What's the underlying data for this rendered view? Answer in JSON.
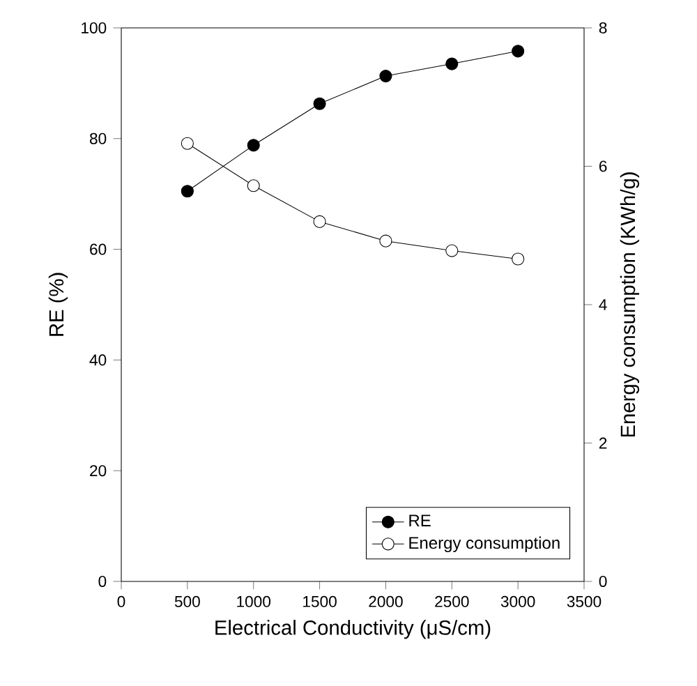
{
  "chart_data": {
    "type": "line",
    "xlabel": "Electrical Conductivity (μS/cm)",
    "ylabel": "RE (%)",
    "y2label": "Energy consumption (KWh/g)",
    "x": [
      500,
      1000,
      1500,
      2000,
      2500,
      3000
    ],
    "series": [
      {
        "name": "RE",
        "color": "#000000",
        "values": [
          70.5,
          78.8,
          86.3,
          91.3,
          93.5,
          95.8
        ]
      },
      {
        "name": "Energy consumption",
        "color": "#ffffff",
        "axis": "y2",
        "values": [
          6.33,
          5.72,
          5.2,
          4.92,
          4.78,
          4.66
        ]
      }
    ],
    "xlim": [
      0,
      3500
    ],
    "xticks": [
      0,
      500,
      1000,
      1500,
      2000,
      2500,
      3000,
      3500
    ],
    "ylim": [
      0,
      100
    ],
    "yticks": [
      0,
      20,
      40,
      60,
      80,
      100
    ],
    "y2lim": [
      0,
      8
    ],
    "y2ticks": [
      0,
      2,
      4,
      6,
      8
    ],
    "marker": "circle",
    "line_style": "solid",
    "legend": "bottom right",
    "grid": false
  }
}
